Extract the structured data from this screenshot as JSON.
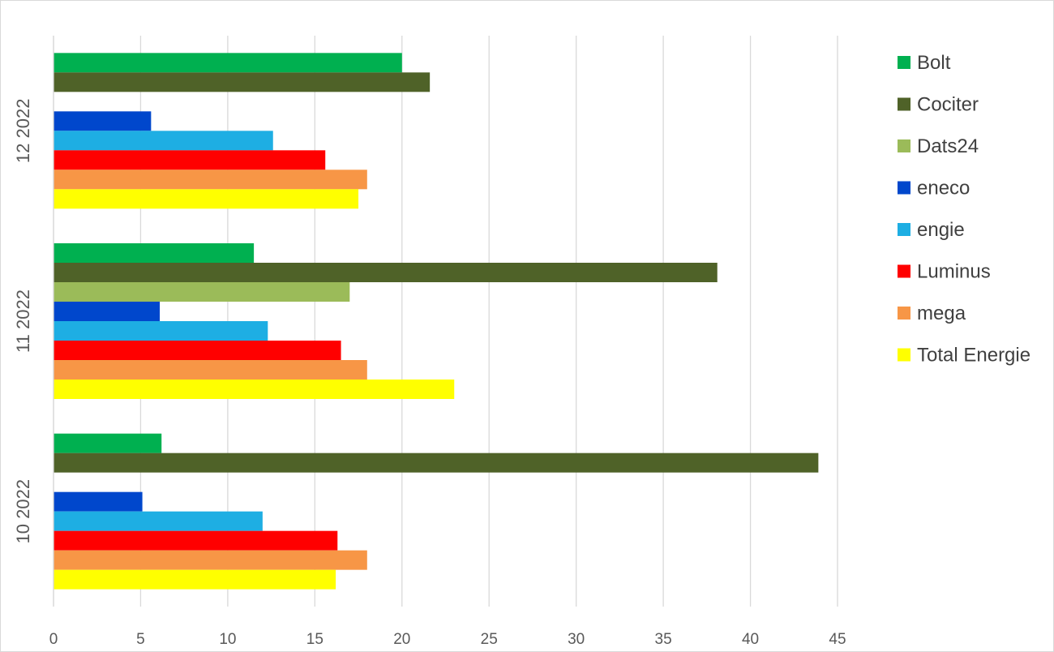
{
  "chart_data": {
    "type": "bar",
    "orientation": "horizontal",
    "categories": [
      "10 2022",
      "11 2022",
      "12 2022"
    ],
    "series": [
      {
        "name": "Bolt",
        "color": "#00B050",
        "values": [
          6.2,
          11.5,
          20.0
        ]
      },
      {
        "name": "Cociter",
        "color": "#4F6228",
        "values": [
          43.9,
          38.1,
          21.6
        ]
      },
      {
        "name": "Dats24",
        "color": "#9BBB59",
        "values": [
          null,
          17.0,
          null
        ]
      },
      {
        "name": "eneco",
        "color": "#0047CC",
        "values": [
          5.1,
          6.1,
          5.6
        ]
      },
      {
        "name": "engie",
        "color": "#1EAEE3",
        "values": [
          12.0,
          12.3,
          12.6
        ]
      },
      {
        "name": "Luminus",
        "color": "#FF0000",
        "values": [
          16.3,
          16.5,
          15.6
        ]
      },
      {
        "name": "mega",
        "color": "#F79646",
        "values": [
          18.0,
          18.0,
          18.0
        ]
      },
      {
        "name": "Total Energie",
        "color": "#FFFF00",
        "values": [
          16.2,
          23.0,
          17.5
        ]
      }
    ],
    "xlim": [
      0,
      45
    ],
    "x_ticks": [
      0,
      5,
      10,
      15,
      20,
      25,
      30,
      35,
      40,
      45
    ],
    "grid": "vertical",
    "legend_position": "right",
    "title": "",
    "xlabel": "",
    "ylabel": ""
  }
}
